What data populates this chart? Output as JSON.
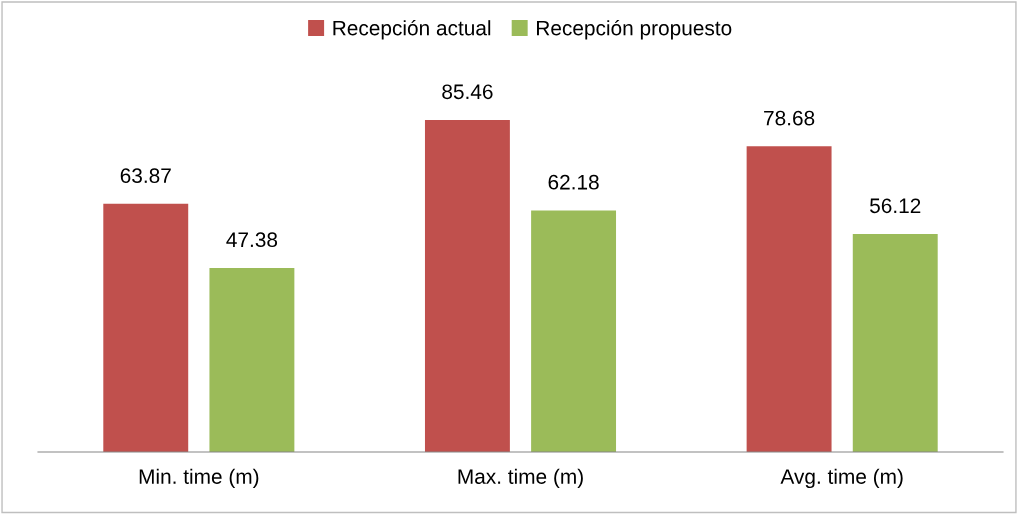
{
  "chart_data": {
    "type": "bar",
    "categories": [
      "Min. time (m)",
      "Max. time (m)",
      "Avg. time (m)"
    ],
    "series": [
      {
        "name": "Recepción actual",
        "color": "#c0504d",
        "values": [
          63.87,
          85.46,
          78.68
        ]
      },
      {
        "name": "Recepción propuesto",
        "color": "#9bbb59",
        "values": [
          47.38,
          62.18,
          56.12
        ]
      }
    ],
    "data_labels": true,
    "legend": "top",
    "grid": false
  }
}
